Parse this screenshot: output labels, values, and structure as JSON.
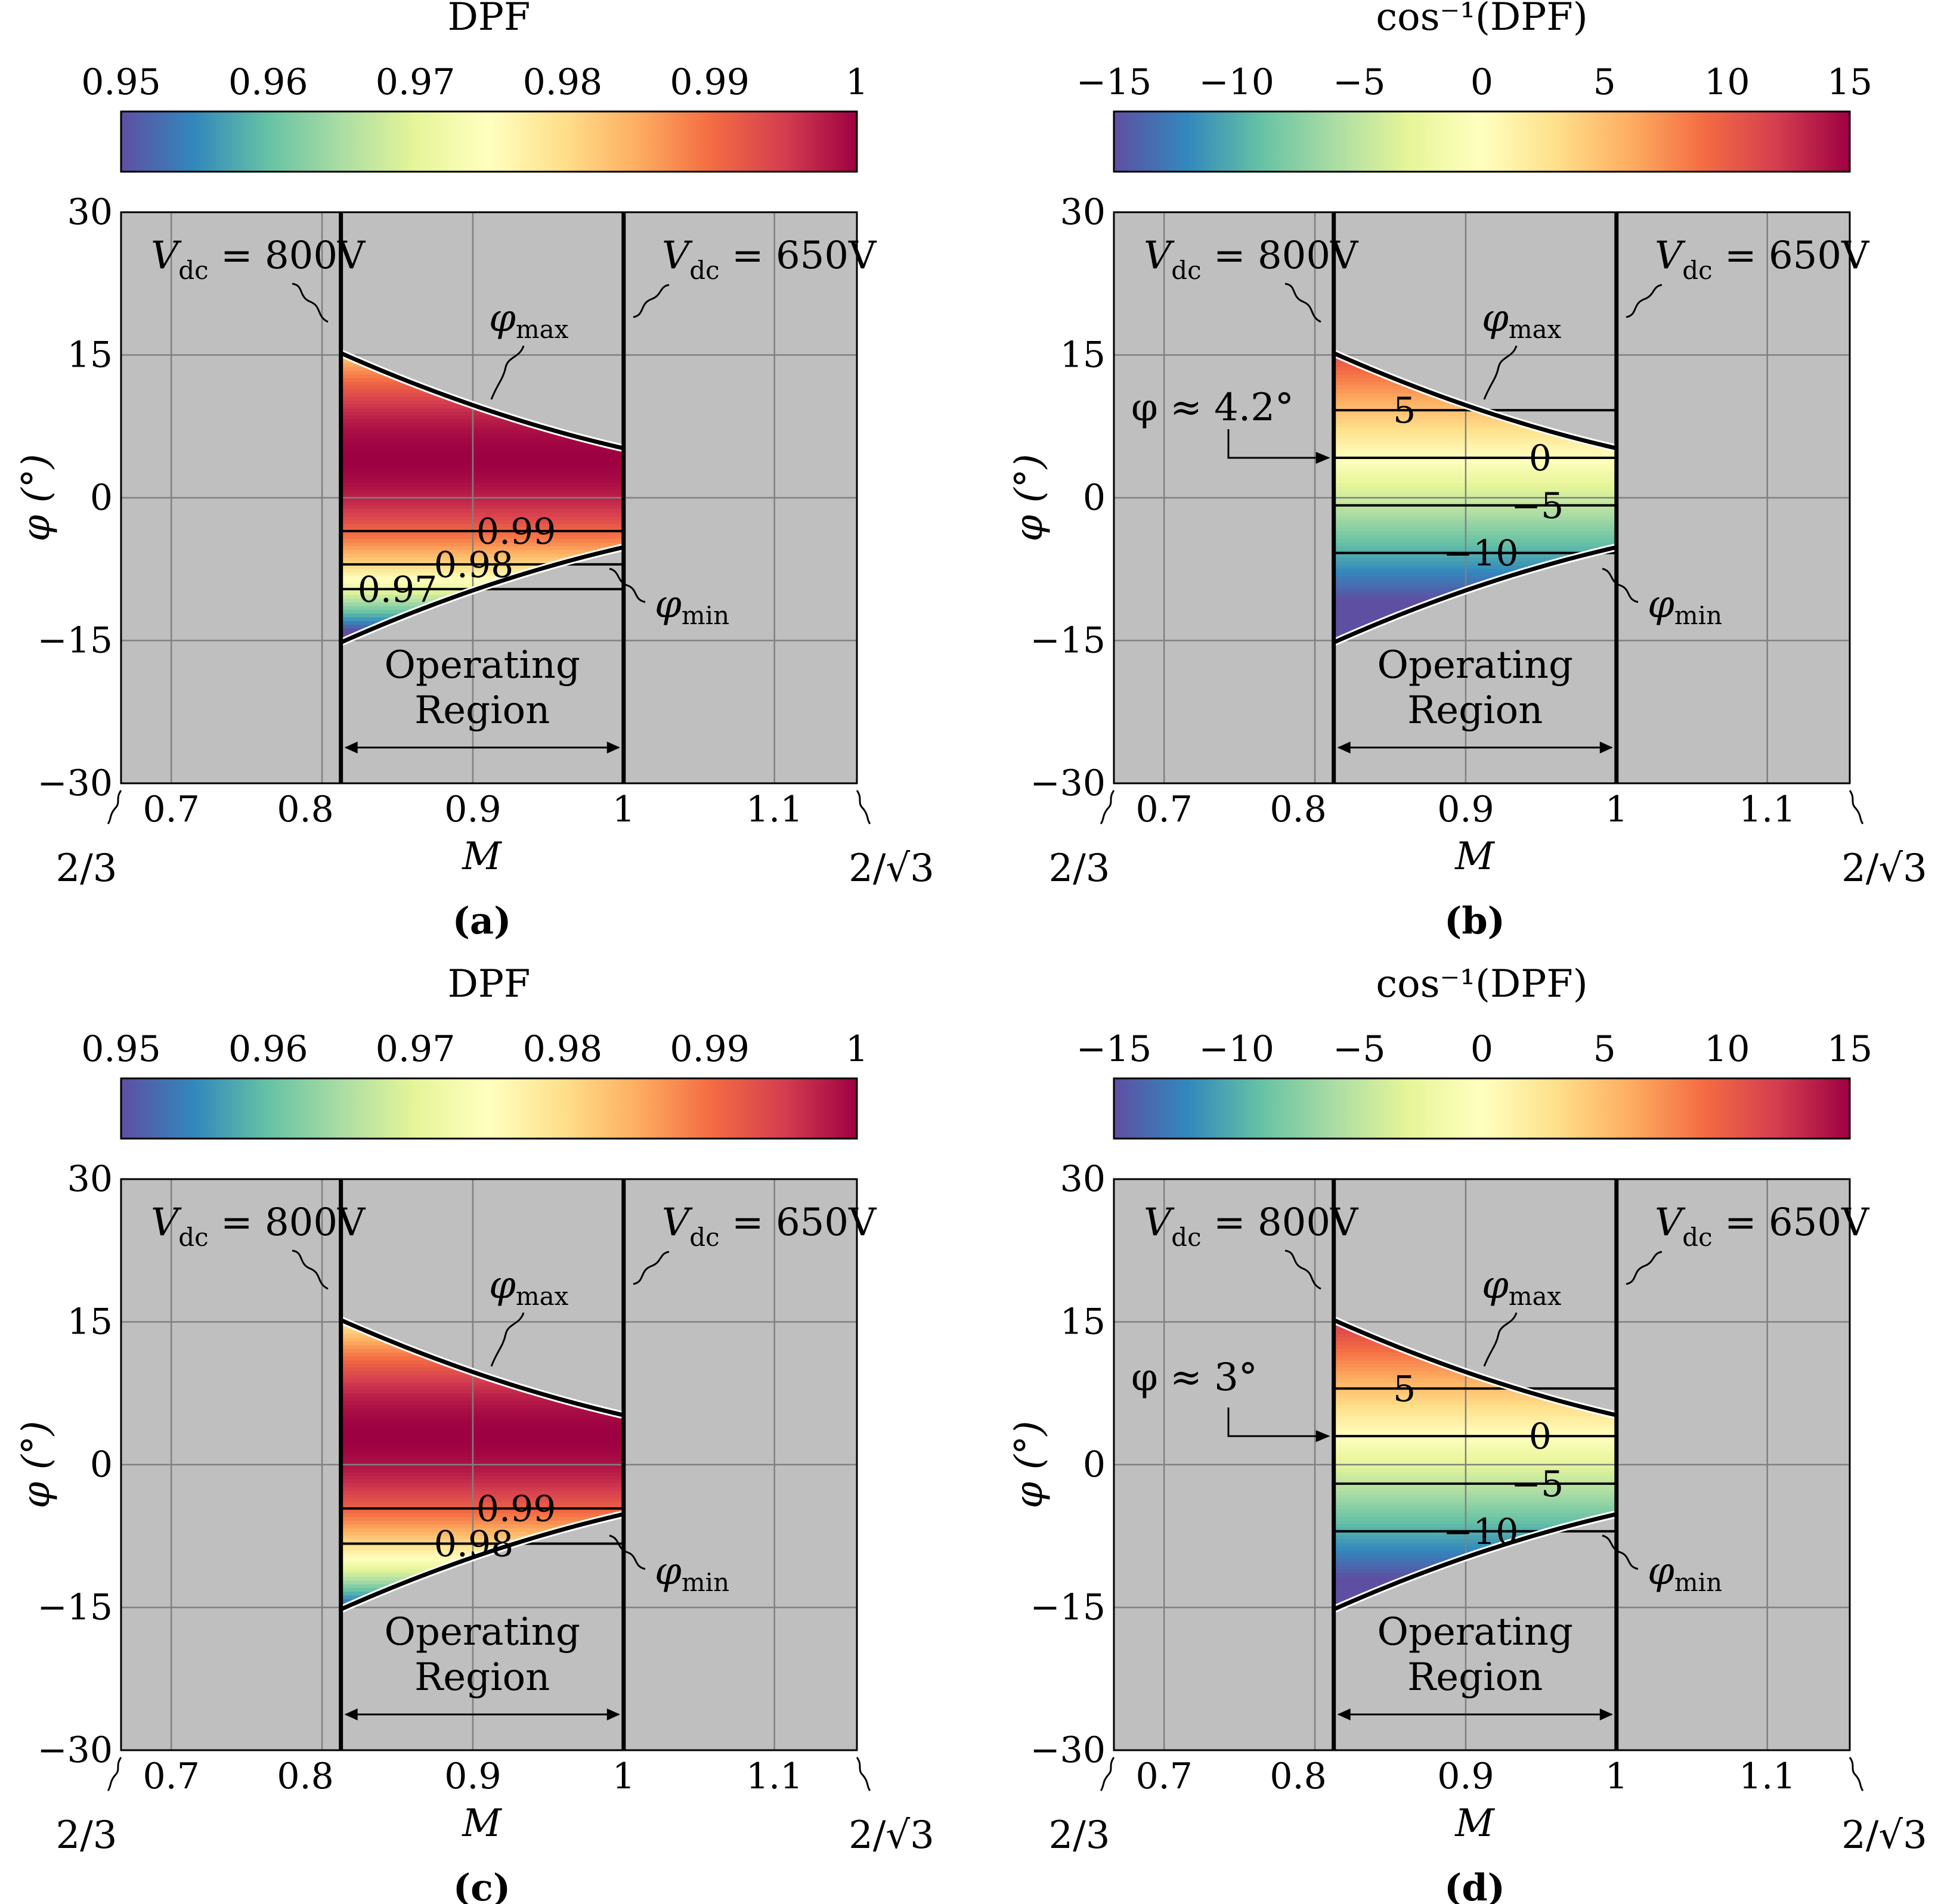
{
  "figure": {
    "x_axis_label": "M",
    "y_axis_label": "φ (°)",
    "left_bound_label": "2/3",
    "right_bound_label": "2/√3",
    "operating_region_line1": "Operating",
    "operating_region_line2": "Region",
    "vdc_left_label": "V",
    "vdc_left_sub": "dc",
    "vdc_left_value": " = 800V",
    "vdc_right_label": "V",
    "vdc_right_sub": "dc",
    "vdc_right_value": " = 650V",
    "phi_max_symbol": "φ",
    "phi_max_sub": "max",
    "phi_min_symbol": "φ",
    "phi_min_sub": "min",
    "colors": {
      "background": "#bfbfbf",
      "grid": "#808080",
      "boundary": "#000000"
    }
  },
  "chart_data": [
    {
      "type": "heatmap",
      "panel_label": "(a)",
      "colorbar_title": "DPF",
      "colorbar_range": [
        0.95,
        1
      ],
      "colorbar_ticks": [
        "0.95",
        "0.96",
        "0.97",
        "0.98",
        "0.99",
        "1"
      ],
      "xlim": [
        0.6667,
        1.1547
      ],
      "ylim": [
        -30,
        30
      ],
      "xticks": [
        "0.7",
        "0.8",
        "0.9",
        "1",
        "1.1"
      ],
      "yticks": [
        "30",
        "15",
        "0",
        "−15",
        "−30"
      ],
      "vdc_800_M": 0.8125,
      "vdc_650_M": 1.0,
      "phi_max": {
        "M": [
          0.8125,
          1.0
        ],
        "phi": [
          15.2,
          5.2
        ]
      },
      "phi_min": {
        "M": [
          0.8125,
          1.0
        ],
        "phi": [
          -15.2,
          -5.2
        ]
      },
      "contours": [
        {
          "label": "0.99",
          "phi": -3.5
        },
        {
          "label": "0.98",
          "phi": -7.0
        },
        {
          "label": "0.97",
          "phi": -9.6
        }
      ],
      "optimum_phi": 4.2,
      "annotation": ""
    },
    {
      "type": "heatmap",
      "panel_label": "(b)",
      "colorbar_title": "cos⁻¹(DPF)",
      "colorbar_range": [
        -15,
        15
      ],
      "colorbar_ticks": [
        "−15",
        "−10",
        "−5",
        "0",
        "5",
        "10",
        "15"
      ],
      "xlim": [
        0.6667,
        1.1547
      ],
      "ylim": [
        -30,
        30
      ],
      "xticks": [
        "0.7",
        "0.8",
        "0.9",
        "1",
        "1.1"
      ],
      "yticks": [
        "30",
        "15",
        "0",
        "−15",
        "−30"
      ],
      "vdc_800_M": 0.8125,
      "vdc_650_M": 1.0,
      "phi_max": {
        "M": [
          0.8125,
          1.0
        ],
        "phi": [
          15.2,
          5.2
        ]
      },
      "phi_min": {
        "M": [
          0.8125,
          1.0
        ],
        "phi": [
          -15.2,
          -5.2
        ]
      },
      "contours": [
        {
          "label": "5",
          "phi": 9.2
        },
        {
          "label": "0",
          "phi": 4.2
        },
        {
          "label": "−5",
          "phi": -0.8
        },
        {
          "label": "−10",
          "phi": -5.8
        }
      ],
      "optimum_phi": 4.2,
      "annotation": "φ ≈ 4.2°"
    },
    {
      "type": "heatmap",
      "panel_label": "(c)",
      "colorbar_title": "DPF",
      "colorbar_range": [
        0.95,
        1
      ],
      "colorbar_ticks": [
        "0.95",
        "0.96",
        "0.97",
        "0.98",
        "0.99",
        "1"
      ],
      "xlim": [
        0.6667,
        1.1547
      ],
      "ylim": [
        -30,
        30
      ],
      "xticks": [
        "0.7",
        "0.8",
        "0.9",
        "1",
        "1.1"
      ],
      "yticks": [
        "30",
        "15",
        "0",
        "−15",
        "−30"
      ],
      "vdc_800_M": 0.8125,
      "vdc_650_M": 1.0,
      "phi_max": {
        "M": [
          0.8125,
          1.0
        ],
        "phi": [
          15.2,
          5.2
        ]
      },
      "phi_min": {
        "M": [
          0.8125,
          1.0
        ],
        "phi": [
          -15.2,
          -5.2
        ]
      },
      "contours": [
        {
          "label": "0.99",
          "phi": -4.6
        },
        {
          "label": "0.98",
          "phi": -8.3
        }
      ],
      "optimum_phi": 3.0,
      "annotation": ""
    },
    {
      "type": "heatmap",
      "panel_label": "(d)",
      "colorbar_title": "cos⁻¹(DPF)",
      "colorbar_range": [
        -15,
        15
      ],
      "colorbar_ticks": [
        "−15",
        "−10",
        "−5",
        "0",
        "5",
        "10",
        "15"
      ],
      "xlim": [
        0.6667,
        1.1547
      ],
      "ylim": [
        -30,
        30
      ],
      "xticks": [
        "0.7",
        "0.8",
        "0.9",
        "1",
        "1.1"
      ],
      "yticks": [
        "30",
        "15",
        "0",
        "−15",
        "−30"
      ],
      "vdc_800_M": 0.8125,
      "vdc_650_M": 1.0,
      "phi_max": {
        "M": [
          0.8125,
          1.0
        ],
        "phi": [
          15.2,
          5.2
        ]
      },
      "phi_min": {
        "M": [
          0.8125,
          1.0
        ],
        "phi": [
          -15.2,
          -5.2
        ]
      },
      "contours": [
        {
          "label": "5",
          "phi": 8.0
        },
        {
          "label": "0",
          "phi": 3.0
        },
        {
          "label": "−5",
          "phi": -2.0
        },
        {
          "label": "−10",
          "phi": -7.0
        }
      ],
      "optimum_phi": 3.0,
      "annotation": "φ ≈ 3°"
    }
  ]
}
